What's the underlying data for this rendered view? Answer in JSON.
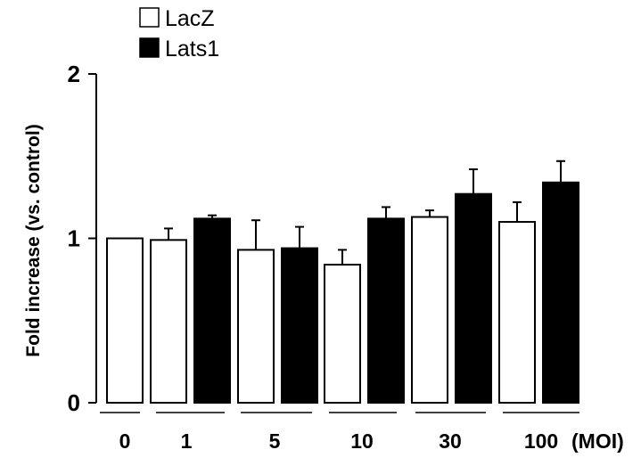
{
  "chart_data": {
    "type": "bar",
    "title": "",
    "xlabel": "",
    "ylabel": "Fold increase (vs. control)",
    "ylim": [
      0,
      2
    ],
    "yticks": [
      0,
      1,
      2
    ],
    "grid": false,
    "legend_position": "top-left",
    "bar_colors": {
      "LacZ": "#ffffff",
      "Lats1": "#000000"
    },
    "unit_label": "(MOI)",
    "legend": [
      {
        "name": "LacZ",
        "fill": "#ffffff"
      },
      {
        "name": "Lats1",
        "fill": "#000000"
      }
    ],
    "groups": [
      {
        "label": "0",
        "bars": [
          {
            "series": "LacZ",
            "value": 1.0,
            "error": 0
          }
        ]
      },
      {
        "label": "1",
        "bars": [
          {
            "series": "LacZ",
            "value": 0.99,
            "error": 0.07
          },
          {
            "series": "Lats1",
            "value": 1.12,
            "error": 0.02
          }
        ]
      },
      {
        "label": "5",
        "bars": [
          {
            "series": "LacZ",
            "value": 0.93,
            "error": 0.18
          },
          {
            "series": "Lats1",
            "value": 0.94,
            "error": 0.13
          }
        ]
      },
      {
        "label": "10",
        "bars": [
          {
            "series": "LacZ",
            "value": 0.84,
            "error": 0.09
          },
          {
            "series": "Lats1",
            "value": 1.12,
            "error": 0.07
          }
        ]
      },
      {
        "label": "30",
        "bars": [
          {
            "series": "LacZ",
            "value": 1.13,
            "error": 0.04
          },
          {
            "series": "Lats1",
            "value": 1.27,
            "error": 0.15
          }
        ]
      },
      {
        "label": "100",
        "bars": [
          {
            "series": "LacZ",
            "value": 1.1,
            "error": 0.12
          },
          {
            "series": "Lats1",
            "value": 1.34,
            "error": 0.13
          }
        ]
      }
    ]
  }
}
